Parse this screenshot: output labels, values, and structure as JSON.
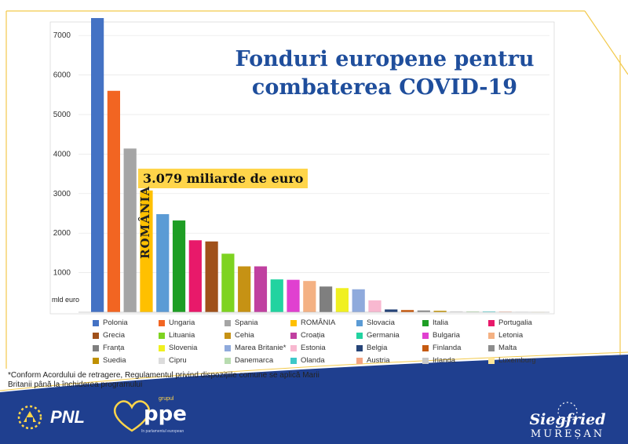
{
  "chart_data": {
    "type": "bar",
    "title": "Fonduri europene pentru combaterea COVID-19",
    "ylabel": "mld euro",
    "ylim": [
      0,
      7500
    ],
    "yticks": [
      1000,
      2000,
      3000,
      4000,
      5000,
      6000,
      7000
    ],
    "categories": [
      "Polonia",
      "Ungaria",
      "Spania",
      "ROMÂNIA",
      "Slovacia",
      "Italia",
      "Portugalia",
      "Grecia",
      "Lituania",
      "Cehia",
      "Croația",
      "Germania",
      "Bulgaria",
      "Letonia",
      "Franța",
      "Slovenia",
      "Marea Britanie*",
      "Estonia",
      "Belgia",
      "Finlanda",
      "Malta",
      "Suedia",
      "Cipru",
      "Danemarca",
      "Olanda",
      "Austria",
      "Irlanda",
      "Luxemburg"
    ],
    "values": [
      7440,
      5600,
      4140,
      3079,
      2480,
      2320,
      1820,
      1790,
      1480,
      1160,
      1160,
      830,
      820,
      790,
      650,
      610,
      580,
      300,
      70,
      55,
      45,
      35,
      25,
      20,
      18,
      15,
      10,
      5
    ],
    "colors": [
      "#4472c4",
      "#f26522",
      "#a5a5a5",
      "#ffc000",
      "#5b9bd5",
      "#1e9e24",
      "#e8196a",
      "#a0511a",
      "#7ed321",
      "#c69214",
      "#c040a0",
      "#22d3a0",
      "#e040d0",
      "#f4b183",
      "#7f7f7f",
      "#f0f020",
      "#8faadc",
      "#f8b8d0",
      "#264478",
      "#c55a11",
      "#8c8c8c",
      "#bf9000",
      "#dcdcdc",
      "#b8dcb0",
      "#3cc8c8",
      "#f4a582",
      "#c8c8c8",
      "#ffe699"
    ],
    "annotation": "3.079 miliarde de euro",
    "highlight_label": "ROMÂNIA"
  },
  "footnote": "*Conform Acordului de retragere, Regulamentul privind dispozițiile comune se aplică Marii Britanii până la închiderea programului",
  "logos": {
    "pnl": "PNL",
    "ppe_grupul": "grupul",
    "ppe": "ppe",
    "ppe_sub": "în parlamentul european"
  },
  "signature": {
    "first": "Siegfried",
    "last": "MUREȘAN"
  },
  "colors": {
    "title": "#1f4e9c",
    "frame": "#f2c94c",
    "band": "#1f3f8f"
  }
}
